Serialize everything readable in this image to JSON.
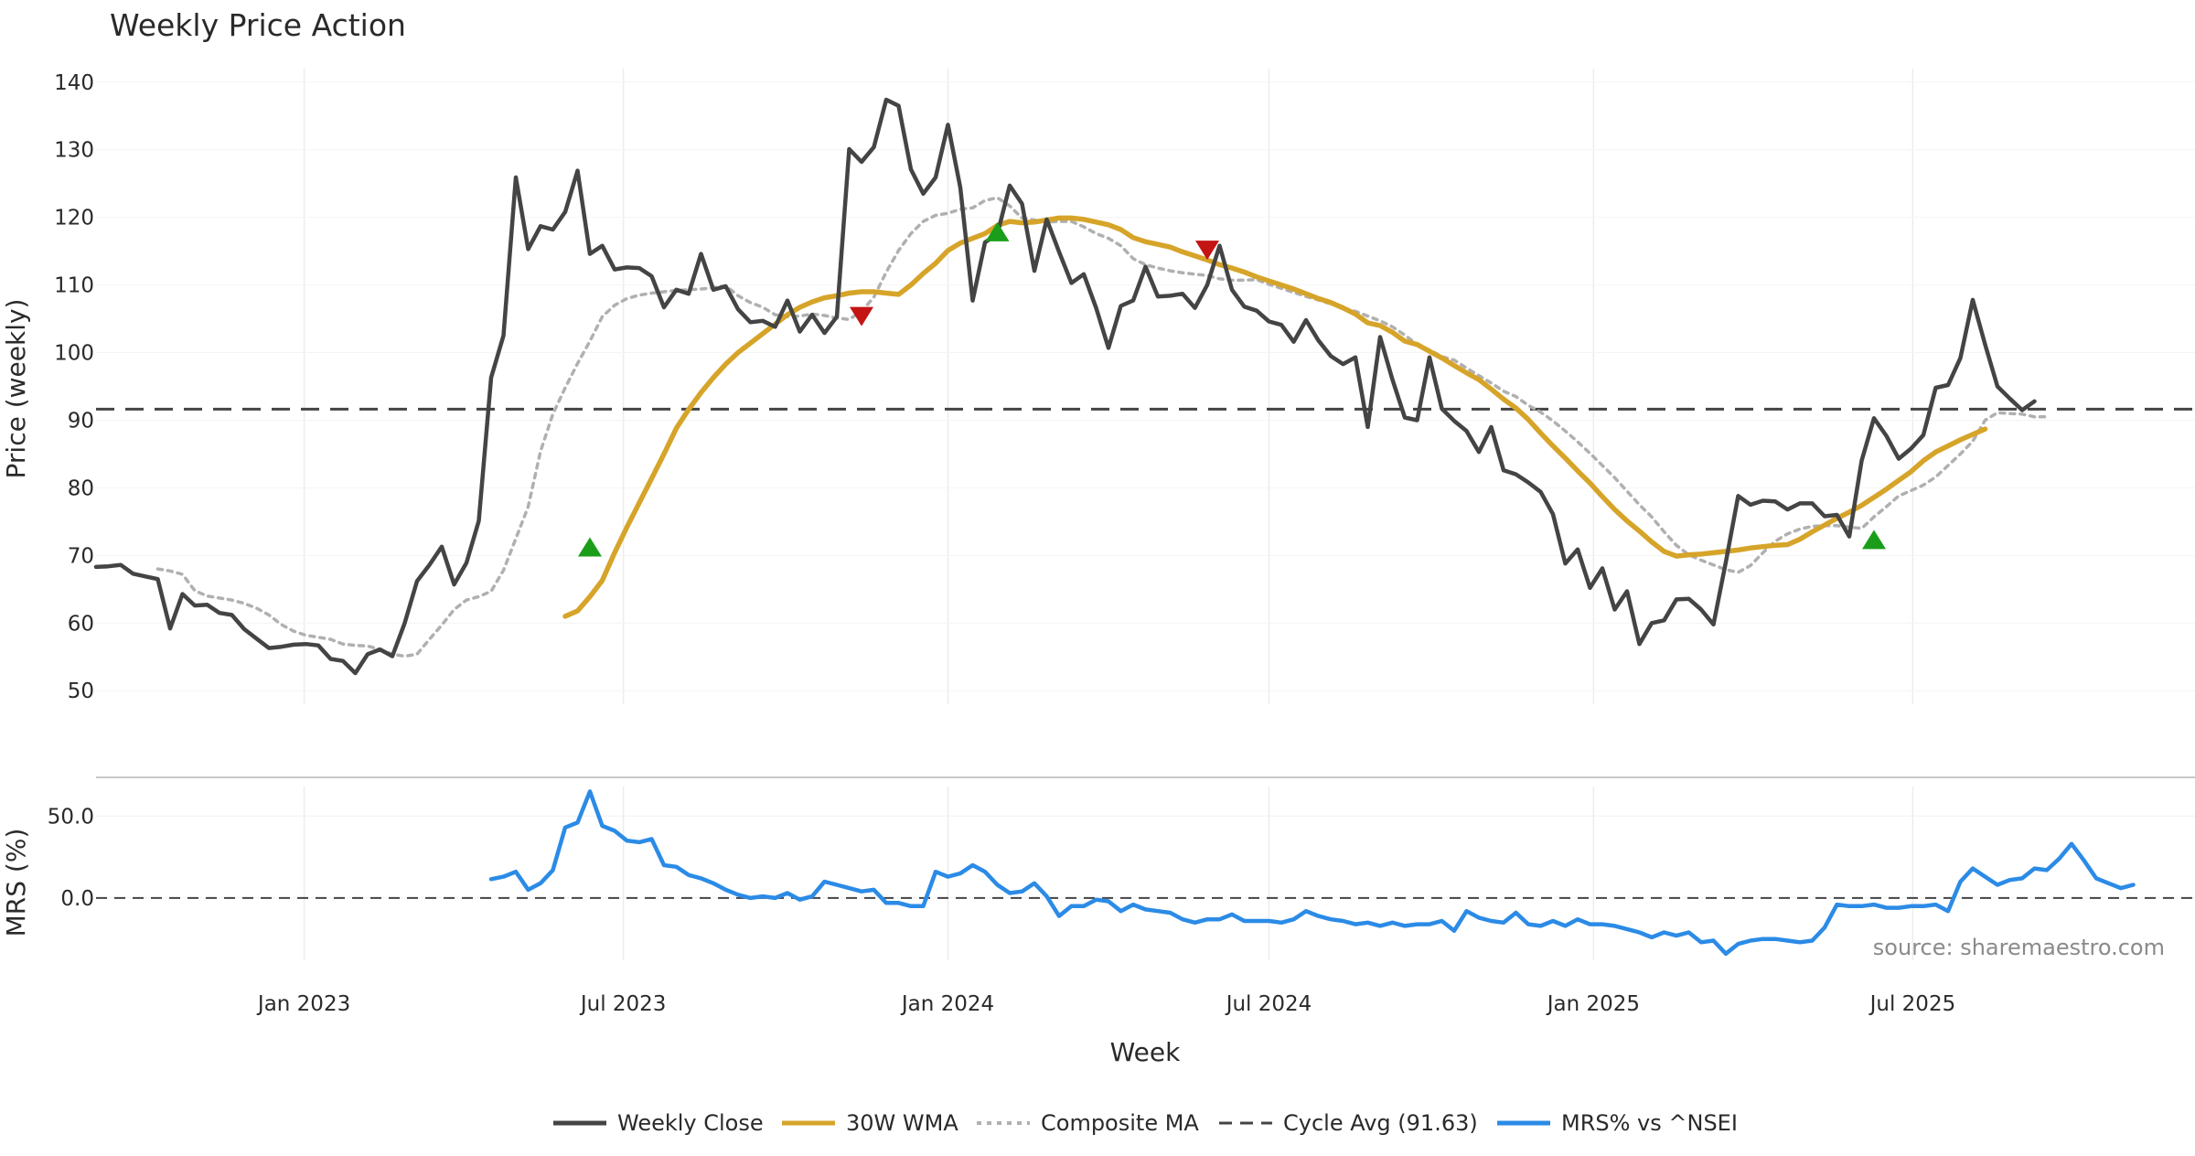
{
  "chart_data": {
    "type": "line",
    "title": "Weekly Price Action",
    "xlabel": "Week",
    "ylabel": "Price (weekly)",
    "ylabel2": "MRS (%)",
    "source": "source: sharemaestro.com",
    "x_ticks": [
      "Jan 2023",
      "Jul 2023",
      "Jan 2024",
      "Jul 2024",
      "Jan 2025",
      "Jul 2025"
    ],
    "y_ticks": [
      "50",
      "60",
      "70",
      "80",
      "90",
      "100",
      "110",
      "120",
      "130",
      "140"
    ],
    "y2_ticks": [
      "0.0",
      "50.0"
    ],
    "ylim": [
      48,
      142
    ],
    "y2lim": [
      -38,
      68
    ],
    "x_start": "2022-09-05",
    "x_end": "2025-12-08",
    "cycle_avg": 91.63,
    "legend": [
      "Weekly Close",
      "30W WMA",
      "Composite MA",
      "Cycle Avg (91.63)",
      "MRS% vs ^NSEI"
    ],
    "colors": {
      "close": "#444444",
      "wma": "#d6a429",
      "composite": "#b0b0b0",
      "cycle": "#444444",
      "mrs": "#2b8be6",
      "buy": "#1a9e1a",
      "sell": "#c41414"
    },
    "series": [
      {
        "name": "Weekly Close",
        "start": "2022-09-05",
        "values": [
          68.3,
          68.4,
          68.6,
          67.3,
          66.9,
          66.5,
          59.2,
          64.3,
          62.6,
          62.7,
          61.5,
          61.2,
          59.1,
          57.7,
          56.3,
          56.5,
          56.8,
          56.9,
          56.7,
          54.7,
          54.4,
          52.6,
          55.4,
          56.1,
          55.1,
          60.0,
          66.2,
          68.6,
          71.3,
          65.7,
          68.9,
          75.1,
          96.3,
          102.5,
          125.9,
          115.3,
          118.7,
          118.2,
          120.8,
          126.9,
          114.6,
          115.8,
          112.3,
          112.6,
          112.5,
          111.3,
          106.7,
          109.3,
          108.7,
          114.6,
          109.3,
          109.8,
          106.4,
          104.5,
          104.7,
          103.8,
          107.7,
          103.1,
          105.6,
          102.9,
          105.3,
          130.1,
          128.2,
          130.4,
          137.4,
          136.5,
          127.1,
          123.5,
          125.9,
          133.7,
          124.4,
          107.7,
          116.3,
          117.5,
          124.7,
          122.0,
          112.1,
          119.7,
          114.9,
          110.3,
          111.6,
          106.6,
          100.7,
          106.9,
          107.7,
          112.7,
          108.3,
          108.4,
          108.7,
          106.6,
          110.0,
          115.8,
          109.3,
          106.8,
          106.2,
          104.6,
          104.1,
          101.6,
          104.8,
          101.8,
          99.5,
          98.3,
          99.3,
          89.0,
          102.3,
          96.0,
          90.4,
          90.0,
          99.3,
          91.7,
          89.9,
          88.4,
          85.3,
          89.0,
          82.6,
          82.0,
          80.8,
          79.4,
          76.1,
          68.8,
          70.9,
          65.2,
          68.1,
          62.0,
          64.7,
          56.9,
          60.0,
          60.4,
          63.5,
          63.6,
          62.0,
          59.8,
          69.0,
          78.8,
          77.5,
          78.1,
          78.0,
          76.8,
          77.7,
          77.7,
          75.8,
          76.0,
          72.8,
          84.0,
          90.3,
          87.7,
          84.3,
          85.8,
          87.8,
          94.8,
          95.2,
          99.2,
          107.8,
          101.2,
          95.0,
          93.2,
          91.5,
          92.8
        ]
      },
      {
        "name": "30W WMA",
        "start": "2023-05-29",
        "values": [
          61.0,
          61.8,
          63.9,
          66.3,
          70.4,
          74.2,
          77.8,
          81.4,
          85.0,
          88.8,
          91.6,
          94.1,
          96.3,
          98.3,
          100.0,
          101.4,
          102.8,
          104.2,
          105.6,
          106.7,
          107.5,
          108.1,
          108.4,
          108.8,
          109.0,
          109.0,
          108.8,
          108.6,
          110.0,
          111.7,
          113.2,
          115.1,
          116.2,
          116.9,
          117.6,
          118.8,
          119.4,
          119.2,
          119.3,
          119.6,
          119.9,
          119.9,
          119.7,
          119.3,
          118.9,
          118.2,
          117.0,
          116.4,
          116.0,
          115.6,
          114.9,
          114.3,
          113.7,
          113.0,
          112.5,
          111.9,
          111.2,
          110.6,
          110.0,
          109.4,
          108.7,
          108.0,
          107.4,
          106.6,
          105.7,
          104.4,
          104.0,
          103.0,
          101.7,
          101.2,
          100.2,
          99.2,
          98.1,
          97.0,
          96.0,
          94.6,
          93.1,
          91.8,
          90.1,
          88.1,
          86.2,
          84.4,
          82.5,
          80.7,
          78.7,
          76.8,
          75.1,
          73.6,
          72.0,
          70.6,
          69.9,
          70.1,
          70.2,
          70.4,
          70.6,
          70.8,
          71.1,
          71.3,
          71.5,
          71.6,
          72.4,
          73.5,
          74.5,
          75.5,
          76.4,
          77.4,
          78.6,
          79.8,
          81.1,
          82.4,
          84.0,
          85.3,
          86.2,
          87.1,
          87.9,
          88.7
        ]
      },
      {
        "name": "Composite MA",
        "start": "2022-10-10",
        "values": [
          68.0,
          67.7,
          67.2,
          64.8,
          64.0,
          63.7,
          63.4,
          62.9,
          62.2,
          61.2,
          59.8,
          58.8,
          58.2,
          57.9,
          57.6,
          56.9,
          56.7,
          56.6,
          56.1,
          55.4,
          55.1,
          55.4,
          57.6,
          59.7,
          62.0,
          63.4,
          63.9,
          64.7,
          67.8,
          72.5,
          77.2,
          85.4,
          90.9,
          94.8,
          98.4,
          101.7,
          105.3,
          107.0,
          108.0,
          108.5,
          108.8,
          109.0,
          109.2,
          109.3,
          109.4,
          109.6,
          109.9,
          108.4,
          107.4,
          106.7,
          105.6,
          105.3,
          105.4,
          105.7,
          105.5,
          105.1,
          104.9,
          106.1,
          108.2,
          111.9,
          115.1,
          117.6,
          119.4,
          120.3,
          120.6,
          121.2,
          121.4,
          122.5,
          122.9,
          121.7,
          119.9,
          119.6,
          119.3,
          119.4,
          119.4,
          118.6,
          117.6,
          116.9,
          115.8,
          113.9,
          113.0,
          112.5,
          112.1,
          111.8,
          111.6,
          111.4,
          110.9,
          110.7,
          110.7,
          110.8,
          110.1,
          109.5,
          108.9,
          108.3,
          107.8,
          107.2,
          106.6,
          106.1,
          105.4,
          104.7,
          103.8,
          102.6,
          101.2,
          100.4,
          99.4,
          98.9,
          97.7,
          96.6,
          95.5,
          94.3,
          93.5,
          92.2,
          91.2,
          89.9,
          88.4,
          86.8,
          85.1,
          83.3,
          81.5,
          79.5,
          77.5,
          75.7,
          73.5,
          71.5,
          70.1,
          69.3,
          68.6,
          67.9,
          67.5,
          68.5,
          70.4,
          72.1,
          73.2,
          73.9,
          74.3,
          74.4,
          74.4,
          74.2,
          74.0,
          75.7,
          77.2,
          78.8,
          79.6,
          80.4,
          81.6,
          83.3,
          85.0,
          86.9,
          90.0,
          91.1,
          91.0,
          90.9,
          90.5,
          90.5
        ]
      },
      {
        "name": "MRS% vs ^NSEI",
        "start": "2023-04-17",
        "values": [
          11.5,
          13.0,
          16.0,
          5.0,
          9.0,
          17.0,
          43.0,
          46.0,
          65.0,
          44.0,
          41.0,
          35.0,
          34.0,
          36.0,
          20.0,
          19.0,
          14.0,
          12.0,
          9.0,
          5.0,
          2.0,
          0.0,
          1.0,
          0.0,
          3.0,
          -1.0,
          1.0,
          10.0,
          8.0,
          6.0,
          4.0,
          5.0,
          -3.0,
          -3.0,
          -5.0,
          -5.0,
          16.0,
          13.0,
          15.0,
          20.0,
          16.0,
          8.0,
          3.0,
          4.0,
          9.0,
          1.0,
          -11.0,
          -5.0,
          -5.0,
          -1.0,
          -2.0,
          -8.0,
          -4.0,
          -7.0,
          -8.0,
          -9.0,
          -13.0,
          -15.0,
          -13.0,
          -13.0,
          -10.0,
          -14.0,
          -14.0,
          -14.0,
          -15.0,
          -13.0,
          -8.0,
          -11.0,
          -13.0,
          -14.0,
          -16.0,
          -15.0,
          -17.0,
          -15.0,
          -17.0,
          -16.0,
          -16.0,
          -14.0,
          -20.0,
          -8.0,
          -12.0,
          -14.0,
          -15.0,
          -9.0,
          -16.0,
          -17.0,
          -14.0,
          -17.0,
          -13.0,
          -16.0,
          -16.0,
          -17.0,
          -19.0,
          -21.0,
          -24.0,
          -21.0,
          -23.0,
          -21.0,
          -27.0,
          -26.0,
          -34.0,
          -28.0,
          -26.0,
          -25.0,
          -25.0,
          -26.0,
          -27.0,
          -26.0,
          -18.0,
          -4.0,
          -5.0,
          -5.0,
          -4.0,
          -6.0,
          -6.0,
          -5.0,
          -5.0,
          -4.0,
          -8.0,
          10.0,
          18.0,
          13.0,
          8.0,
          11.0,
          12.0,
          18.0,
          17.0,
          24.0,
          33.0,
          23.0,
          12.0,
          9.0,
          6.0,
          8.0
        ]
      }
    ],
    "buy_signals": [
      {
        "x": "2023-06-12",
        "y": 71.2
      },
      {
        "x": "2024-01-29",
        "y": 117.8
      },
      {
        "x": "2025-06-09",
        "y": 72.3
      }
    ],
    "sell_signals": [
      {
        "x": "2023-11-13",
        "y": 105.4
      },
      {
        "x": "2024-05-27",
        "y": 115.2
      }
    ]
  }
}
